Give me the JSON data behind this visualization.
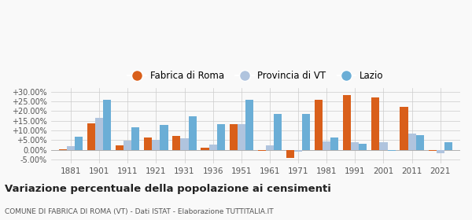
{
  "years": [
    1881,
    1901,
    1911,
    1921,
    1931,
    1936,
    1951,
    1961,
    1971,
    1981,
    1991,
    2001,
    2011,
    2021
  ],
  "fabrica": [
    0.3,
    13.5,
    2.2,
    6.6,
    7.3,
    1.2,
    13.1,
    -0.5,
    -4.3,
    25.9,
    28.3,
    27.0,
    22.3,
    -0.3
  ],
  "provincia": [
    2.0,
    16.7,
    4.8,
    5.3,
    5.8,
    2.8,
    13.2,
    2.2,
    -1.0,
    4.5,
    3.8,
    3.8,
    8.3,
    -1.8
  ],
  "lazio": [
    7.0,
    26.0,
    11.6,
    12.8,
    17.5,
    13.2,
    25.7,
    18.4,
    18.5,
    6.5,
    3.0,
    -0.3,
    7.5,
    4.0
  ],
  "color_fabrica": "#d95f1a",
  "color_provincia": "#b0c4de",
  "color_lazio": "#6baed6",
  "ylim_min": -7.0,
  "ylim_max": 32.0,
  "yticks": [
    -5.0,
    0.0,
    5.0,
    10.0,
    15.0,
    20.0,
    25.0,
    30.0
  ],
  "title": "Variazione percentuale della popolazione ai censimenti",
  "subtitle": "COMUNE DI FABRICA DI ROMA (VT) - Dati ISTAT - Elaborazione TUTTITALIA.IT",
  "legend_labels": [
    "Fabrica di Roma",
    "Provincia di VT",
    "Lazio"
  ],
  "bar_width": 0.28,
  "background_color": "#f9f9f9"
}
